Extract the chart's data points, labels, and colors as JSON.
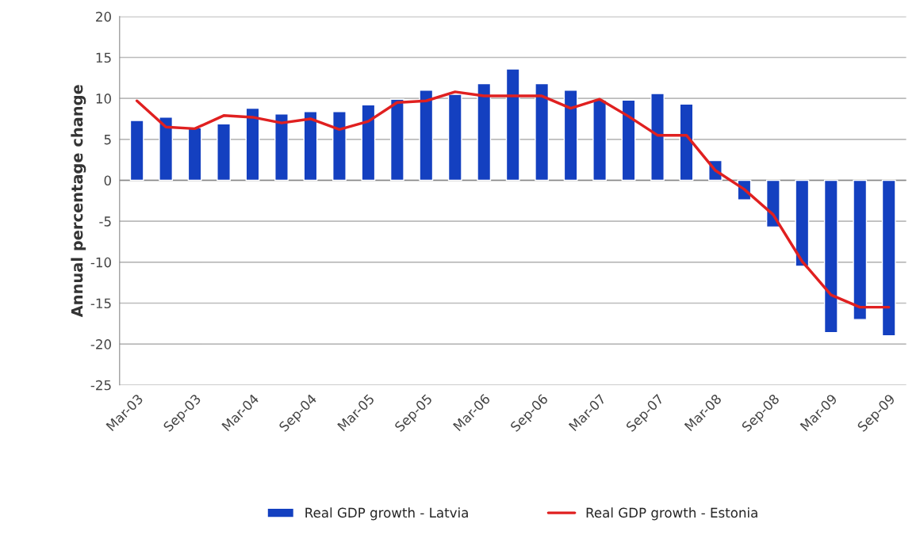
{
  "chart_data": {
    "type": "bar",
    "ylabel": "Annual percentage change",
    "categories": [
      "Mar-03",
      null,
      "Sep-03",
      null,
      "Mar-04",
      null,
      "Sep-04",
      null,
      "Mar-05",
      null,
      "Sep-05",
      null,
      "Mar-06",
      null,
      "Sep-06",
      null,
      "Mar-07",
      null,
      "Sep-07",
      null,
      "Mar-08",
      null,
      "Sep-08",
      null,
      "Mar-09",
      null,
      "Sep-09"
    ],
    "series": [
      {
        "name": "Real GDP growth - Latvia",
        "color": "#1440c0",
        "values": [
          7.3,
          7.7,
          6.4,
          6.9,
          8.8,
          8.1,
          8.4,
          8.4,
          9.2,
          9.9,
          11.0,
          10.5,
          11.8,
          13.6,
          11.8,
          11.0,
          9.8,
          9.8,
          10.6,
          9.3,
          2.4,
          -2.4,
          -5.7,
          -10.5,
          -18.6,
          -17.0,
          -19.0
        ]
      },
      {
        "name": "Real GDP growth - Estonia",
        "type": "line",
        "color": "#e02020",
        "values": [
          9.7,
          6.5,
          6.3,
          7.9,
          7.7,
          7.0,
          7.5,
          6.2,
          7.2,
          9.5,
          9.7,
          10.8,
          10.3,
          10.3,
          10.3,
          8.8,
          9.9,
          7.8,
          5.5,
          5.5,
          1.2,
          -1.1,
          -4.2,
          -9.9,
          -14.0,
          -15.5,
          -15.5
        ]
      }
    ],
    "ylim": [
      -25,
      20
    ],
    "yticks": [
      -25,
      -20,
      -15,
      -10,
      -5,
      0,
      5,
      10,
      15,
      20
    ],
    "grid": "y",
    "legend": "bottom",
    "marker": "none",
    "line_style": "solid"
  }
}
